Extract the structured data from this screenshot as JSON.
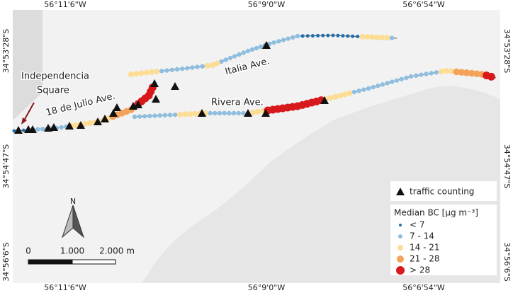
{
  "coordinates": {
    "top": [
      "56°11'6\"W",
      "56°9'0\"W",
      "56°6'54\"W"
    ],
    "bottom": [
      "56°11'6\"W",
      "56°9'0\"W",
      "56°6'54\"W"
    ],
    "left": [
      "34°53'28\"S",
      "34°54'47\"S",
      "34°56'6\"S"
    ],
    "right": [
      "34°53'28\"S",
      "34°54'47\"S",
      "34°56'6\"S"
    ]
  },
  "place": [
    "Independencia",
    "Square"
  ],
  "streets": [
    "18 de Julio Ave.",
    "Italia Ave.",
    "Rivera Ave."
  ],
  "legend": {
    "traffic": "traffic counting",
    "title": "Median BC [µg m⁻³]",
    "classes": [
      {
        "label": "< 7",
        "color": "#1f6fad"
      },
      {
        "label": "7 - 14",
        "color": "#8fbfe0"
      },
      {
        "label": "14 - 21",
        "color": "#fddc93"
      },
      {
        "label": "21 - 28",
        "color": "#f4a259"
      },
      {
        "label": "> 28",
        "color": "#d7191c"
      }
    ]
  },
  "scale": [
    "0",
    "1.000",
    "2.000 m"
  ],
  "north": "N"
}
